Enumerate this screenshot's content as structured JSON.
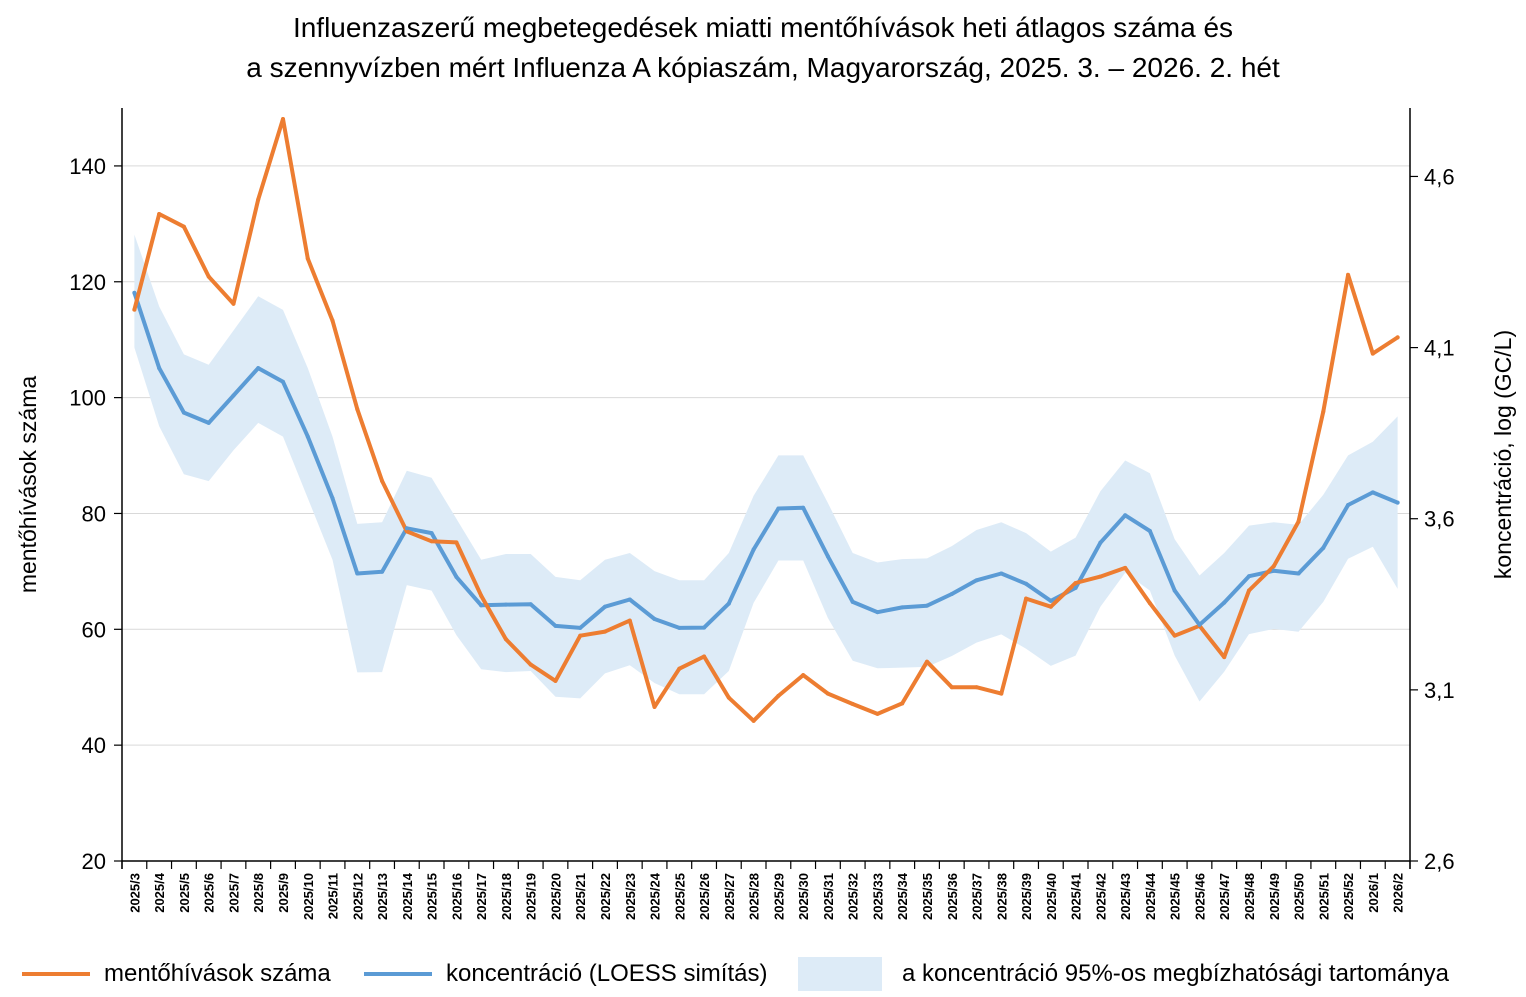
{
  "title": [
    "Influenzaszerű megbetegedések miatti mentőhívások heti átlagos száma és",
    "a szennyvízben mért Influenza A kópiaszám, Magyarország, 2025. 3. – 2026. 2. hét"
  ],
  "legend": {
    "calls": "mentőhívások száma",
    "conc": "koncentráció (LOESS simítás)",
    "band": "a koncentráció 95%-os megbízhatósági tartománya"
  },
  "colors": {
    "calls": "#ED7D31",
    "conc": "#5B9BD5",
    "band": "#DDEBF7",
    "grid": "#D9D9D9",
    "axis": "#000000"
  },
  "chart_data": {
    "type": "line",
    "xlabel": "",
    "ylabel": "mentőhívások száma",
    "y2label": "koncentráció, log (GC/L)",
    "ylim": [
      20,
      150
    ],
    "yticks": [
      20,
      40,
      60,
      80,
      100,
      120,
      140
    ],
    "y2lim": [
      2.6,
      4.8
    ],
    "y2ticks": [
      "2,6",
      "3,1",
      "3,6",
      "4,1",
      "4,6"
    ],
    "y2tick_values": [
      2.6,
      3.1,
      3.6,
      4.1,
      4.6
    ],
    "grid": "horizontal",
    "legend_position": "bottom",
    "categories": [
      "2025/3",
      "2025/4",
      "2025/5",
      "2025/6",
      "2025/7",
      "2025/8",
      "2025/9",
      "2025/10",
      "2025/11",
      "2025/12",
      "2025/13",
      "2025/14",
      "2025/15",
      "2025/16",
      "2025/17",
      "2025/18",
      "2025/19",
      "2025/20",
      "2025/21",
      "2025/22",
      "2025/23",
      "2025/24",
      "2025/25",
      "2025/26",
      "2025/27",
      "2025/28",
      "2025/29",
      "2025/30",
      "2025/31",
      "2025/32",
      "2025/33",
      "2025/34",
      "2025/35",
      "2025/36",
      "2025/37",
      "2025/38",
      "2025/39",
      "2025/40",
      "2025/41",
      "2025/42",
      "2025/43",
      "2025/44",
      "2025/45",
      "2025/46",
      "2025/47",
      "2025/48",
      "2025/49",
      "2025/50",
      "2025/51",
      "2025/52",
      "2026/1",
      "2026/2"
    ],
    "series": [
      {
        "name": "mentőhívások száma",
        "axis": "left",
        "values": [
          115.2,
          131.7,
          129.5,
          120.9,
          116.2,
          134.2,
          148.1,
          124.0,
          113.3,
          98.0,
          85.6,
          76.9,
          75.2,
          75.0,
          65.8,
          58.3,
          53.9,
          51.1,
          58.9,
          59.6,
          61.5,
          46.6,
          53.2,
          55.3,
          48.2,
          44.2,
          48.5,
          52.1,
          48.9,
          47.1,
          45.4,
          47.2,
          54.4,
          50.0,
          50.0,
          48.9,
          65.3,
          63.9,
          68.0,
          69.1,
          70.6,
          64.5,
          58.9,
          60.6,
          55.2,
          66.7,
          70.9,
          78.6,
          97.6,
          121.2,
          107.6,
          110.4
        ]
      },
      {
        "name": "koncentráció (LOESS simítás)",
        "axis": "right",
        "values": [
          4.26,
          4.04,
          3.91,
          3.88,
          3.96,
          4.04,
          4.0,
          3.84,
          3.66,
          3.44,
          3.445,
          3.572,
          3.558,
          3.43,
          3.347,
          3.349,
          3.35,
          3.287,
          3.281,
          3.343,
          3.364,
          3.307,
          3.281,
          3.282,
          3.352,
          3.51,
          3.63,
          3.632,
          3.49,
          3.357,
          3.327,
          3.341,
          3.346,
          3.38,
          3.42,
          3.44,
          3.41,
          3.36,
          3.398,
          3.53,
          3.61,
          3.564,
          3.39,
          3.29,
          3.355,
          3.432,
          3.448,
          3.44,
          3.515,
          3.64,
          3.677,
          3.647
        ]
      }
    ],
    "band": {
      "name": "a koncentráció 95%-os megbízhatósági tartománya",
      "axis": "right",
      "upper": [
        4.43,
        4.22,
        4.08,
        4.05,
        4.15,
        4.25,
        4.21,
        4.04,
        3.84,
        3.585,
        3.59,
        3.74,
        3.72,
        3.6,
        3.48,
        3.497,
        3.497,
        3.43,
        3.42,
        3.48,
        3.5,
        3.447,
        3.42,
        3.42,
        3.5,
        3.667,
        3.785,
        3.785,
        3.646,
        3.5,
        3.472,
        3.482,
        3.484,
        3.52,
        3.567,
        3.59,
        3.558,
        3.504,
        3.545,
        3.68,
        3.77,
        3.733,
        3.54,
        3.434,
        3.5,
        3.58,
        3.59,
        3.582,
        3.67,
        3.785,
        3.825,
        3.899
      ],
      "lower": [
        4.1,
        3.87,
        3.73,
        3.71,
        3.8,
        3.88,
        3.84,
        3.66,
        3.48,
        3.151,
        3.152,
        3.406,
        3.39,
        3.26,
        3.16,
        3.152,
        3.155,
        3.08,
        3.075,
        3.148,
        3.172,
        3.12,
        3.087,
        3.087,
        3.155,
        3.354,
        3.478,
        3.478,
        3.31,
        3.185,
        3.163,
        3.165,
        3.167,
        3.199,
        3.238,
        3.262,
        3.22,
        3.17,
        3.2,
        3.343,
        3.442,
        3.39,
        3.2,
        3.066,
        3.153,
        3.263,
        3.278,
        3.27,
        3.357,
        3.483,
        3.518,
        3.395
      ]
    }
  }
}
